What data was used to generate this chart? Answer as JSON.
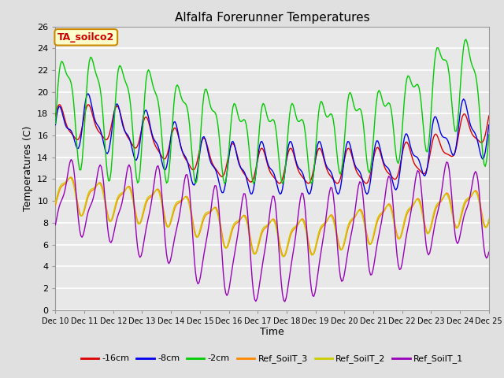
{
  "title": "Alfalfa Forerunner Temperatures",
  "xlabel": "Time",
  "ylabel": "Temperatures (C)",
  "annotation_text": "TA_soilco2",
  "annotation_bg": "#ffffcc",
  "annotation_border": "#cc8800",
  "annotation_text_color": "#cc0000",
  "ylim": [
    0,
    26
  ],
  "yticks": [
    0,
    2,
    4,
    6,
    8,
    10,
    12,
    14,
    16,
    18,
    20,
    22,
    24,
    26
  ],
  "xtick_labels": [
    "Dec 10",
    "Dec 11",
    "Dec 12",
    "Dec 13",
    "Dec 14",
    "Dec 15",
    "Dec 16",
    "Dec 17",
    "Dec 18",
    "Dec 19",
    "Dec 20",
    "Dec 21",
    "Dec 22",
    "Dec 23",
    "Dec 24",
    "Dec 25"
  ],
  "bg_color": "#e0e0e0",
  "plot_bg": "#e8e8e8",
  "grid_color": "#ffffff",
  "series_colors": [
    "#dd0000",
    "#0000ee",
    "#00cc00",
    "#ff8800",
    "#cccc00",
    "#9900bb"
  ],
  "series_labels": [
    "-16cm",
    "-8cm",
    "-2cm",
    "Ref_SoilT_3",
    "Ref_SoilT_2",
    "Ref_SoilT_1"
  ],
  "n_points": 360,
  "n_days": 15
}
